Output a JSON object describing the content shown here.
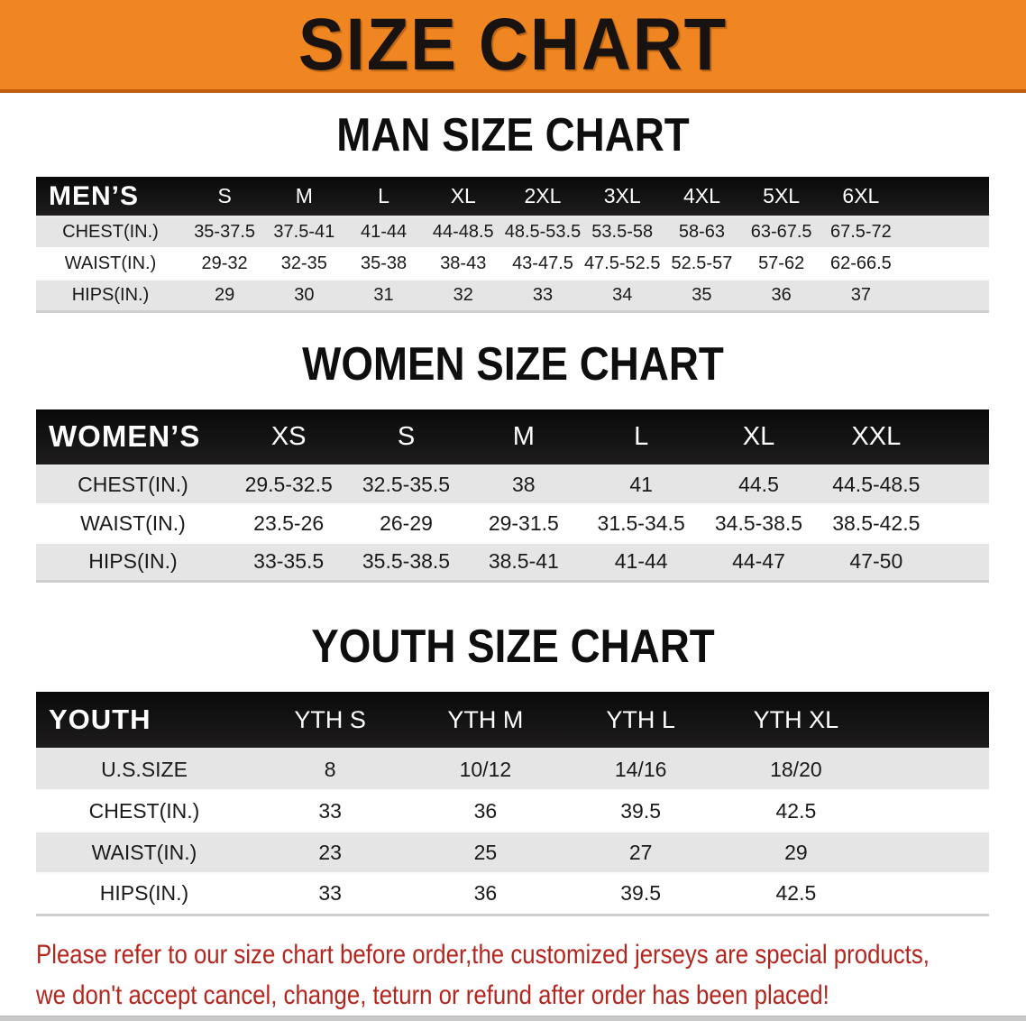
{
  "banner": {
    "title": "SIZE CHART",
    "bg_color": "#ef8621",
    "edge_color": "#c05e0e"
  },
  "sections": [
    {
      "heading": "MAN SIZE CHART",
      "table": {
        "corner_label": "MEN’S",
        "columns": [
          "S",
          "M",
          "L",
          "XL",
          "2XL",
          "3XL",
          "4XL",
          "5XL",
          "6XL"
        ],
        "rows": [
          {
            "label": "CHEST(IN.)",
            "values": [
              "35-37.5",
              "37.5-41",
              "41-44",
              "44-48.5",
              "48.5-53.5",
              "53.5-58",
              "58-63",
              "63-67.5",
              "67.5-72"
            ]
          },
          {
            "label": "WAIST(IN.)",
            "values": [
              "29-32",
              "32-35",
              "35-38",
              "38-43",
              "43-47.5",
              "47.5-52.5",
              "52.5-57",
              "57-62",
              "62-66.5"
            ]
          },
          {
            "label": "HIPS(IN.)",
            "values": [
              "29",
              "30",
              "31",
              "32",
              "33",
              "34",
              "35",
              "36",
              "37"
            ]
          }
        ]
      }
    },
    {
      "heading": "WOMEN SIZE CHART",
      "table": {
        "corner_label": "WOMEN’S",
        "columns": [
          "XS",
          "S",
          "M",
          "L",
          "XL",
          "XXL"
        ],
        "rows": [
          {
            "label": "CHEST(IN.)",
            "values": [
              "29.5-32.5",
              "32.5-35.5",
              "38",
              "41",
              "44.5",
              "44.5-48.5"
            ]
          },
          {
            "label": "WAIST(IN.)",
            "values": [
              "23.5-26",
              "26-29",
              "29-31.5",
              "31.5-34.5",
              "34.5-38.5",
              "38.5-42.5"
            ]
          },
          {
            "label": "HIPS(IN.)",
            "values": [
              "33-35.5",
              "35.5-38.5",
              "38.5-41",
              "41-44",
              "44-47",
              "47-50"
            ]
          }
        ]
      }
    },
    {
      "heading": "YOUTH SIZE CHART",
      "table": {
        "corner_label": "YOUTH",
        "columns": [
          "YTH S",
          "YTH M",
          "YTH L",
          "YTH XL"
        ],
        "rows": [
          {
            "label": "U.S.SIZE",
            "values": [
              "8",
              "10/12",
              "14/16",
              "18/20"
            ]
          },
          {
            "label": "CHEST(IN.)",
            "values": [
              "33",
              "36",
              "39.5",
              "42.5"
            ]
          },
          {
            "label": "WAIST(IN.)",
            "values": [
              "23",
              "25",
              "27",
              "29"
            ]
          },
          {
            "label": "HIPS(IN.)",
            "values": [
              "33",
              "36",
              "39.5",
              "42.5"
            ]
          }
        ]
      }
    }
  ],
  "footnote": {
    "lines": [
      "Please refer to our size chart before order,the customized jerseys are special products,",
      "we don't accept cancel, change, teturn or refund after order has been placed!"
    ],
    "color": "#b3251d"
  }
}
